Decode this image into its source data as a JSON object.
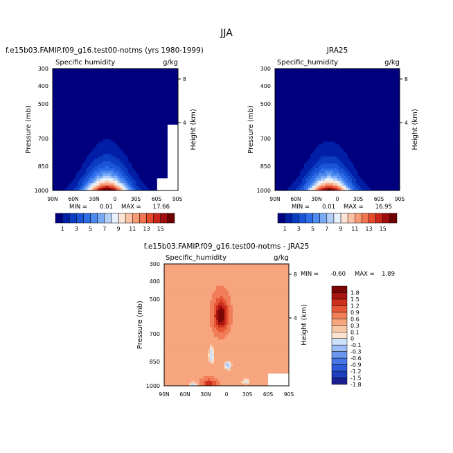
{
  "figure": {
    "title": "JJA"
  },
  "chart_data": [
    {
      "type": "heatmap",
      "title": "f.e15b03.FAMIP.f09_g16.test00-notms (yrs 1980-1999)",
      "subtitle": "Specific humidity",
      "units": "g/kg",
      "ylabel": "Pressure (mb)",
      "ylabel_right": "Height (km)",
      "x_ticks": [
        "90N",
        "60N",
        "30N",
        "0",
        "30S",
        "60S",
        "90S"
      ],
      "y_ticks": [
        "300",
        "400",
        "500",
        "700",
        "850",
        "1000"
      ],
      "height_ticks": [
        "8",
        "4"
      ],
      "ylim": [
        1000,
        300
      ],
      "stats": {
        "min_label": "MIN =",
        "min": "0.01",
        "max_label": "MAX =",
        "max": "17.66"
      },
      "colorbar_labels": [
        "1",
        "3",
        "5",
        "7",
        "9",
        "11",
        "13",
        "15"
      ],
      "contour_levels": [
        1,
        2,
        3,
        4,
        5,
        6,
        7,
        8,
        9,
        10,
        11,
        12,
        13,
        14,
        15,
        16
      ],
      "peak_value": 17.66
    },
    {
      "type": "heatmap",
      "title": "JRA25",
      "subtitle": "Specific_humidity",
      "units": "g/kg",
      "ylabel": "Pressure (mb)",
      "ylabel_right": "Height (km)",
      "x_ticks": [
        "90N",
        "60N",
        "30N",
        "0",
        "30S",
        "60S",
        "90S"
      ],
      "y_ticks": [
        "300",
        "400",
        "500",
        "700",
        "850",
        "1000"
      ],
      "height_ticks": [
        "8",
        "4"
      ],
      "ylim": [
        1000,
        300
      ],
      "stats": {
        "min_label": "MIN =",
        "min": "0.01",
        "max_label": "MAX =",
        "max": "16.95"
      },
      "colorbar_labels": [
        "1",
        "3",
        "5",
        "7",
        "9",
        "11",
        "13",
        "15"
      ],
      "contour_levels": [
        1,
        2,
        3,
        4,
        5,
        6,
        7,
        8,
        9,
        10,
        11,
        12,
        13,
        14,
        15,
        16
      ],
      "peak_value": 16.95
    },
    {
      "type": "heatmap",
      "title": "f.e15b03.FAMIP.f09_g16.test00-notms - JRA25",
      "subtitle": "Specific_humidity",
      "units": "g/kg",
      "ylabel": "Pressure (mb)",
      "ylabel_right": "Height (km)",
      "x_ticks": [
        "90N",
        "60N",
        "30N",
        "0",
        "30S",
        "60S",
        "90S"
      ],
      "y_ticks": [
        "300",
        "400",
        "500",
        "700",
        "850",
        "1000"
      ],
      "height_ticks": [
        "8",
        "4"
      ],
      "ylim": [
        1000,
        300
      ],
      "stats": {
        "min_label": "MIN =",
        "min": "-0.60",
        "max_label": "MAX =",
        "max": "1.89"
      },
      "colorbar_labels": [
        "1.8",
        "1.5",
        "1.2",
        "0.9",
        "0.6",
        "0.3",
        "0.1",
        "0",
        "-0.1",
        "-0.3",
        "-0.6",
        "-0.9",
        "-1.2",
        "-1.5",
        "-1.8"
      ],
      "contour_levels": [
        -1.8,
        -1.5,
        -1.2,
        -0.9,
        -0.6,
        -0.3,
        -0.1,
        0,
        0.1,
        0.3,
        0.6,
        0.9,
        1.2,
        1.5,
        1.8
      ]
    }
  ],
  "colors": {
    "absolute_scale": [
      "#00007f",
      "#001fa6",
      "#0a3dc2",
      "#1a55d8",
      "#2e6de8",
      "#4f8af0",
      "#7aaaf4",
      "#b4d0f8",
      "#e8f2fc",
      "#fde3d4",
      "#fbc3a4",
      "#f89c78",
      "#f37450",
      "#e54a2c",
      "#c9251a",
      "#a00e0e",
      "#6e0000"
    ],
    "difference_scale": [
      "#1a1f8f",
      "#1d3fc0",
      "#2b5bd9",
      "#4577e6",
      "#6a96ee",
      "#9cbdf5",
      "#cfe0fb",
      "#fce4d0",
      "#f9c8a6",
      "#f6a57e",
      "#f17e58",
      "#e55634",
      "#cd2f1d",
      "#a8140f",
      "#7a0606"
    ]
  }
}
